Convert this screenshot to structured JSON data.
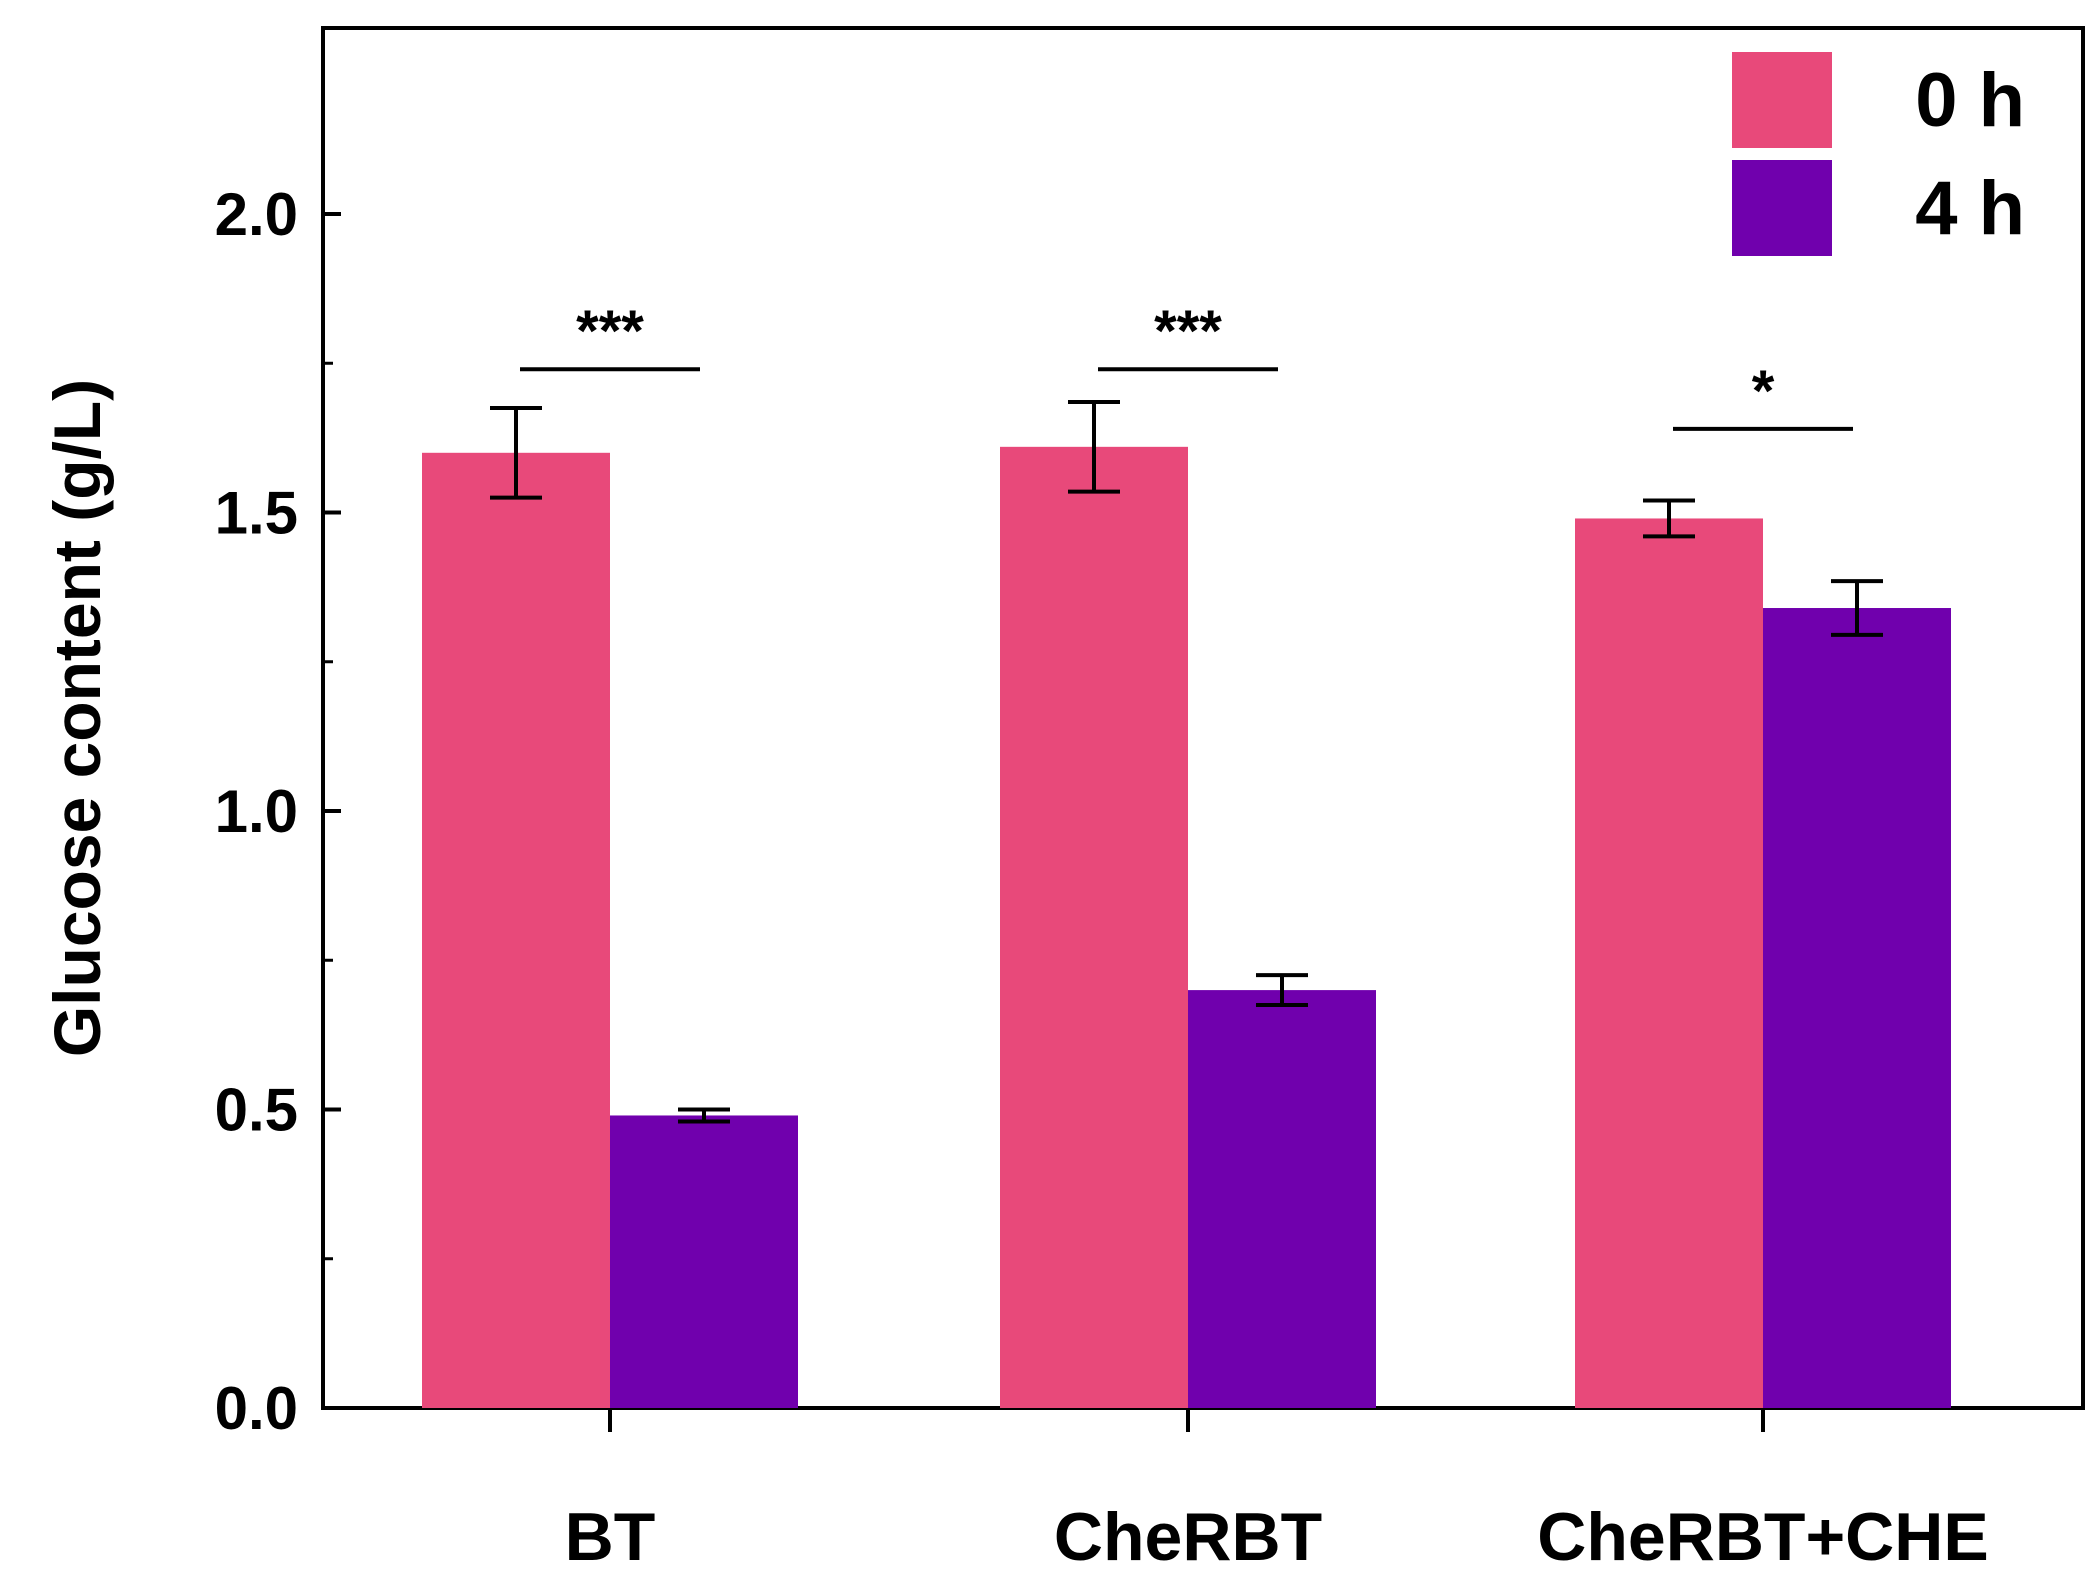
{
  "chart_data": {
    "type": "bar",
    "title": "",
    "xlabel": "",
    "ylabel": "Glucose content (g/L)",
    "ylim": [
      0,
      2.3
    ],
    "yticks": [
      0.0,
      0.5,
      1.0,
      1.5,
      2.0
    ],
    "ytick_labels": [
      "0.0",
      "0.5",
      "1.0",
      "1.5",
      "2.0"
    ],
    "categories": [
      "BT",
      "CheRBT",
      "CheRBT+CHE"
    ],
    "series": [
      {
        "name": "0 h",
        "color": "#e8497a",
        "values": [
          1.6,
          1.61,
          1.49
        ],
        "errors": [
          0.075,
          0.075,
          0.03
        ]
      },
      {
        "name": "4 h",
        "color": "#7000ad",
        "values": [
          0.49,
          0.7,
          1.34
        ],
        "errors": [
          0.01,
          0.025,
          0.045
        ]
      }
    ],
    "significance": [
      {
        "category": "BT",
        "label": "***",
        "level": 1.74
      },
      {
        "category": "CheRBT",
        "label": "***",
        "level": 1.74
      },
      {
        "category": "CheRBT+CHE",
        "label": "*",
        "level": 1.64
      }
    ],
    "legend_position": "top-right"
  }
}
